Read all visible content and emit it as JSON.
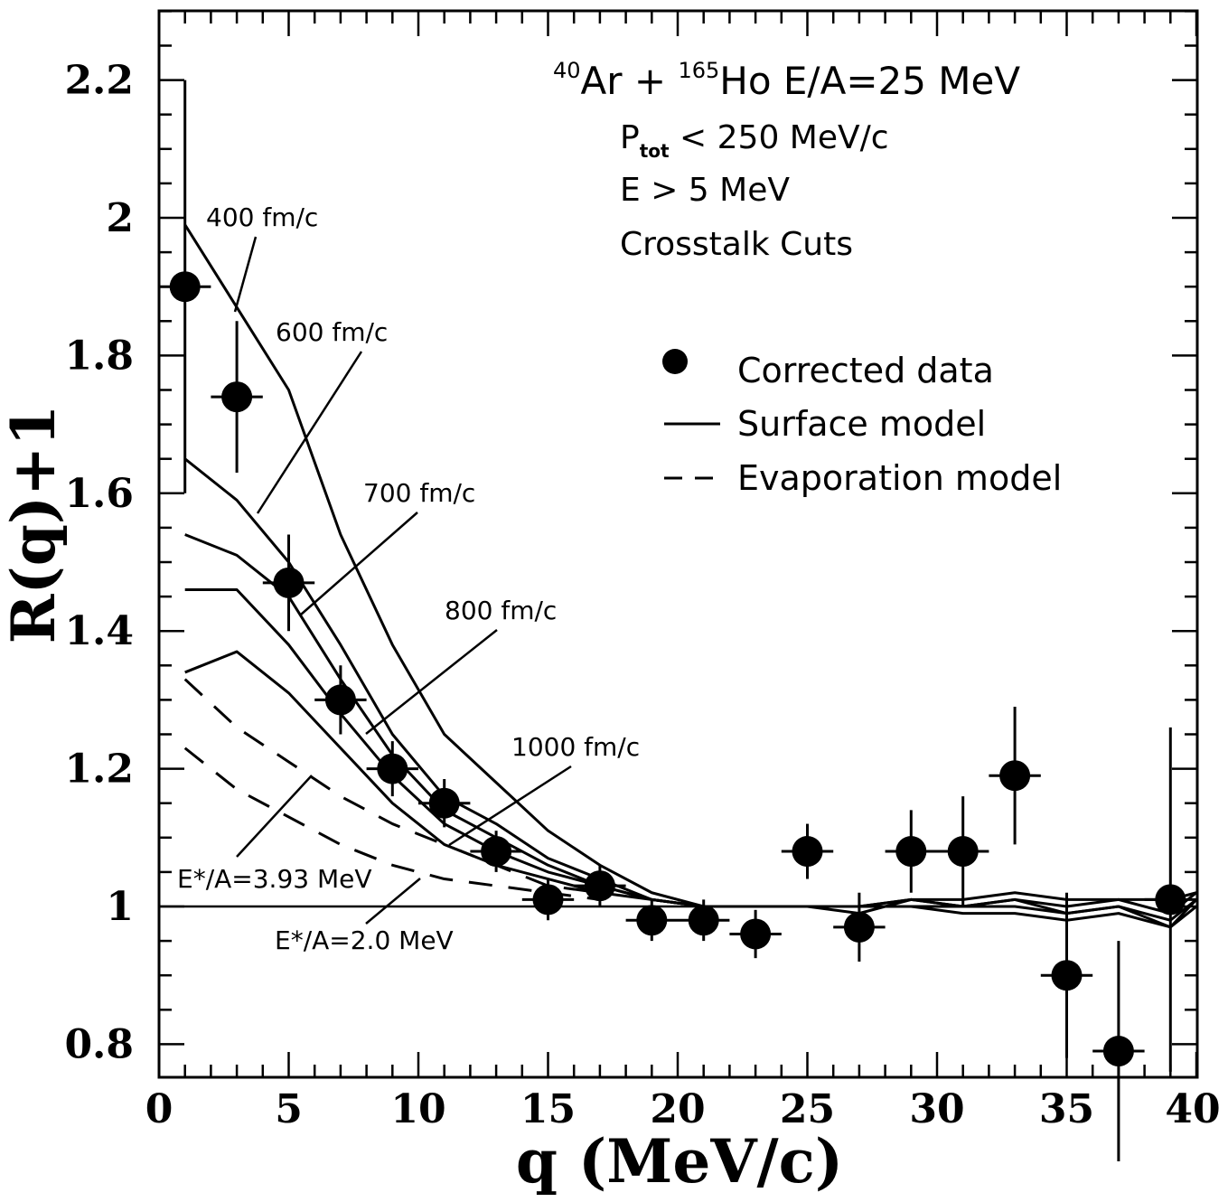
{
  "chart_data": {
    "type": "scatter",
    "xlabel": "q (MeV/c)",
    "ylabel": "R(q)+1",
    "xlim": [
      0,
      40
    ],
    "ylim": [
      0.75,
      2.3
    ],
    "x_ticks": [
      "0",
      "5",
      "10",
      "15",
      "20",
      "25",
      "30",
      "35",
      "40"
    ],
    "y_ticks": [
      "0.8",
      "1",
      "1.2",
      "1.4",
      "1.6",
      "1.8",
      "2",
      "2.2"
    ],
    "title_lines": {
      "reaction": {
        "a1": "40",
        "e1": "Ar + ",
        "a2": "165",
        "e2": "Ho E/A=25 MeV"
      },
      "ptot": {
        "p": "P",
        "sub": "tot",
        "rest": " < 250 MeV/c"
      },
      "energy": "E > 5 MeV",
      "cuts": "Crosstalk Cuts"
    },
    "legend": {
      "placement": "upper-right",
      "entries": [
        {
          "label": "Corrected data",
          "style": "dot"
        },
        {
          "label": "Surface model",
          "style": "solid"
        },
        {
          "label": "Evaporation model",
          "style": "dashed"
        }
      ]
    },
    "data_points": {
      "name": "Corrected data",
      "points": [
        {
          "x": 1,
          "y": 1.9,
          "err": 0.3
        },
        {
          "x": 3,
          "y": 1.74,
          "err": 0.11
        },
        {
          "x": 5,
          "y": 1.47,
          "err": 0.07
        },
        {
          "x": 7,
          "y": 1.3,
          "err": 0.05
        },
        {
          "x": 9,
          "y": 1.2,
          "err": 0.04
        },
        {
          "x": 11,
          "y": 1.15,
          "err": 0.035
        },
        {
          "x": 13,
          "y": 1.08,
          "err": 0.03
        },
        {
          "x": 15,
          "y": 1.01,
          "err": 0.03
        },
        {
          "x": 17,
          "y": 1.03,
          "err": 0.03
        },
        {
          "x": 19,
          "y": 0.98,
          "err": 0.03
        },
        {
          "x": 21,
          "y": 0.98,
          "err": 0.03
        },
        {
          "x": 23,
          "y": 0.96,
          "err": 0.035
        },
        {
          "x": 25,
          "y": 1.08,
          "err": 0.04
        },
        {
          "x": 27,
          "y": 0.97,
          "err": 0.05
        },
        {
          "x": 29,
          "y": 1.08,
          "err": 0.06
        },
        {
          "x": 31,
          "y": 1.08,
          "err": 0.08
        },
        {
          "x": 33,
          "y": 1.19,
          "err": 0.1
        },
        {
          "x": 35,
          "y": 0.9,
          "err": 0.12
        },
        {
          "x": 37,
          "y": 0.79,
          "err": 0.16
        },
        {
          "x": 39,
          "y": 1.01,
          "err": 0.25
        }
      ]
    },
    "surface_model": [
      {
        "label": "400 fm/c",
        "x": [
          1,
          3,
          5,
          7,
          9,
          11,
          13,
          15,
          17,
          19,
          21,
          23,
          25,
          27,
          29,
          31,
          33,
          35,
          37,
          39,
          40
        ],
        "y": [
          1.99,
          1.87,
          1.75,
          1.54,
          1.38,
          1.25,
          1.18,
          1.11,
          1.06,
          1.02,
          1.0,
          1.0,
          1.0,
          1.0,
          1.01,
          1.01,
          1.02,
          1.01,
          1.01,
          1.01,
          1.02
        ]
      },
      {
        "label": "600 fm/c",
        "x": [
          1,
          3,
          5,
          7,
          9,
          11,
          13,
          15,
          17,
          19,
          21,
          23,
          25,
          27,
          29,
          31,
          33,
          35,
          37,
          39,
          40
        ],
        "y": [
          1.65,
          1.59,
          1.5,
          1.38,
          1.25,
          1.16,
          1.12,
          1.07,
          1.04,
          1.01,
          1.0,
          1.0,
          1.0,
          1.0,
          1.01,
          1.0,
          1.01,
          1.0,
          1.01,
          0.99,
          1.02
        ]
      },
      {
        "label": "700 fm/c",
        "x": [
          1,
          3,
          5,
          7,
          9,
          11,
          13,
          15,
          17,
          19,
          21,
          23,
          25,
          27,
          29,
          31,
          33,
          35,
          37,
          39,
          40
        ],
        "y": [
          1.54,
          1.51,
          1.45,
          1.33,
          1.22,
          1.14,
          1.1,
          1.06,
          1.03,
          1.01,
          1.0,
          1.0,
          1.0,
          0.99,
          1.01,
          1.0,
          1.01,
          0.99,
          1.0,
          0.98,
          1.01
        ]
      },
      {
        "label": "800 fm/c",
        "x": [
          1,
          3,
          5,
          7,
          9,
          11,
          13,
          15,
          17,
          19,
          21,
          23,
          25,
          27,
          29,
          31,
          33,
          35,
          37,
          39,
          40
        ],
        "y": [
          1.46,
          1.46,
          1.38,
          1.28,
          1.19,
          1.12,
          1.08,
          1.05,
          1.03,
          1.01,
          1.0,
          1.0,
          1.0,
          1.0,
          1.0,
          1.0,
          1.0,
          0.99,
          1.0,
          0.97,
          1.01
        ]
      },
      {
        "label": "1000 fm/c",
        "x": [
          1,
          3,
          5,
          7,
          9,
          11,
          13,
          15,
          17,
          19,
          21,
          23,
          25,
          27,
          29,
          31,
          33,
          35,
          37,
          39,
          40
        ],
        "y": [
          1.34,
          1.37,
          1.31,
          1.23,
          1.15,
          1.09,
          1.06,
          1.04,
          1.02,
          1.01,
          1.0,
          1.0,
          1.0,
          1.0,
          1.0,
          0.99,
          0.99,
          0.98,
          0.99,
          0.97,
          1.0
        ]
      }
    ],
    "evaporation_model": [
      {
        "label": "E*/A=3.93 MeV",
        "x": [
          1,
          3,
          5,
          7,
          9,
          11,
          13,
          15,
          17
        ],
        "y": [
          1.33,
          1.26,
          1.21,
          1.16,
          1.12,
          1.09,
          1.06,
          1.03,
          1.02
        ]
      },
      {
        "label": "E*/A=2.0 MeV",
        "x": [
          1,
          3,
          5,
          7,
          9,
          11,
          13,
          15,
          17
        ],
        "y": [
          1.23,
          1.17,
          1.13,
          1.09,
          1.06,
          1.04,
          1.03,
          1.02,
          1.01
        ]
      }
    ],
    "reference_line": {
      "y": 1.0,
      "x": [
        0,
        21
      ]
    },
    "grid": false
  }
}
